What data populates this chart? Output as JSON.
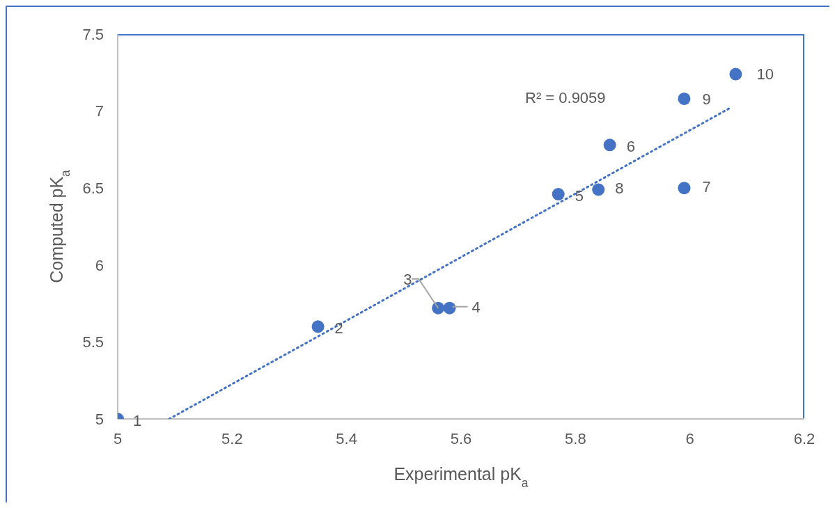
{
  "chart_data": {
    "type": "scatter",
    "xlabel": "Experimental pK$_{a}$",
    "ylabel": "Computed pK$_{a}$",
    "x": [
      5,
      5.35,
      5.56,
      5.58,
      5.77,
      5.86,
      5.99,
      5.84,
      5.99,
      6.08
    ],
    "series": [
      {
        "color": "#4472c4",
        "marker": "circle",
        "values": [
          5,
          5.6,
          5.72,
          5.72,
          6.46,
          6.78,
          6.5,
          6.49,
          7.08,
          7.24
        ]
      },
      {
        "type": "line",
        "color": "#4472c4",
        "line_style": "dotted",
        "x": [
          5.09,
          6.07
        ],
        "values": [
          5,
          7.02
        ]
      }
    ],
    "xlim": [
      5,
      6.2
    ],
    "xticks": [
      5,
      5.2,
      5.4,
      5.6,
      5.8,
      6,
      6.2
    ],
    "ylim": [
      5,
      7.5
    ],
    "yticks": [
      5,
      5.5,
      6,
      6.5,
      7,
      7.5
    ],
    "annotations": [
      {
        "text": "1",
        "x": 5,
        "y": 5
      },
      {
        "text": "2",
        "x": 5.35,
        "y": 5.6
      },
      {
        "text": "3",
        "x": 5.56,
        "y": 5.72
      },
      {
        "text": "4",
        "x": 5.58,
        "y": 5.72
      },
      {
        "text": "5",
        "x": 5.77,
        "y": 6.46
      },
      {
        "text": "6",
        "x": 5.86,
        "y": 6.78
      },
      {
        "text": "7",
        "x": 5.99,
        "y": 6.5
      },
      {
        "text": "8",
        "x": 5.84,
        "y": 6.49
      },
      {
        "text": "9",
        "x": 5.99,
        "y": 7.08
      },
      {
        "text": "10",
        "x": 6.08,
        "y": 7.24
      },
      "R² = 0.9059"
    ]
  }
}
